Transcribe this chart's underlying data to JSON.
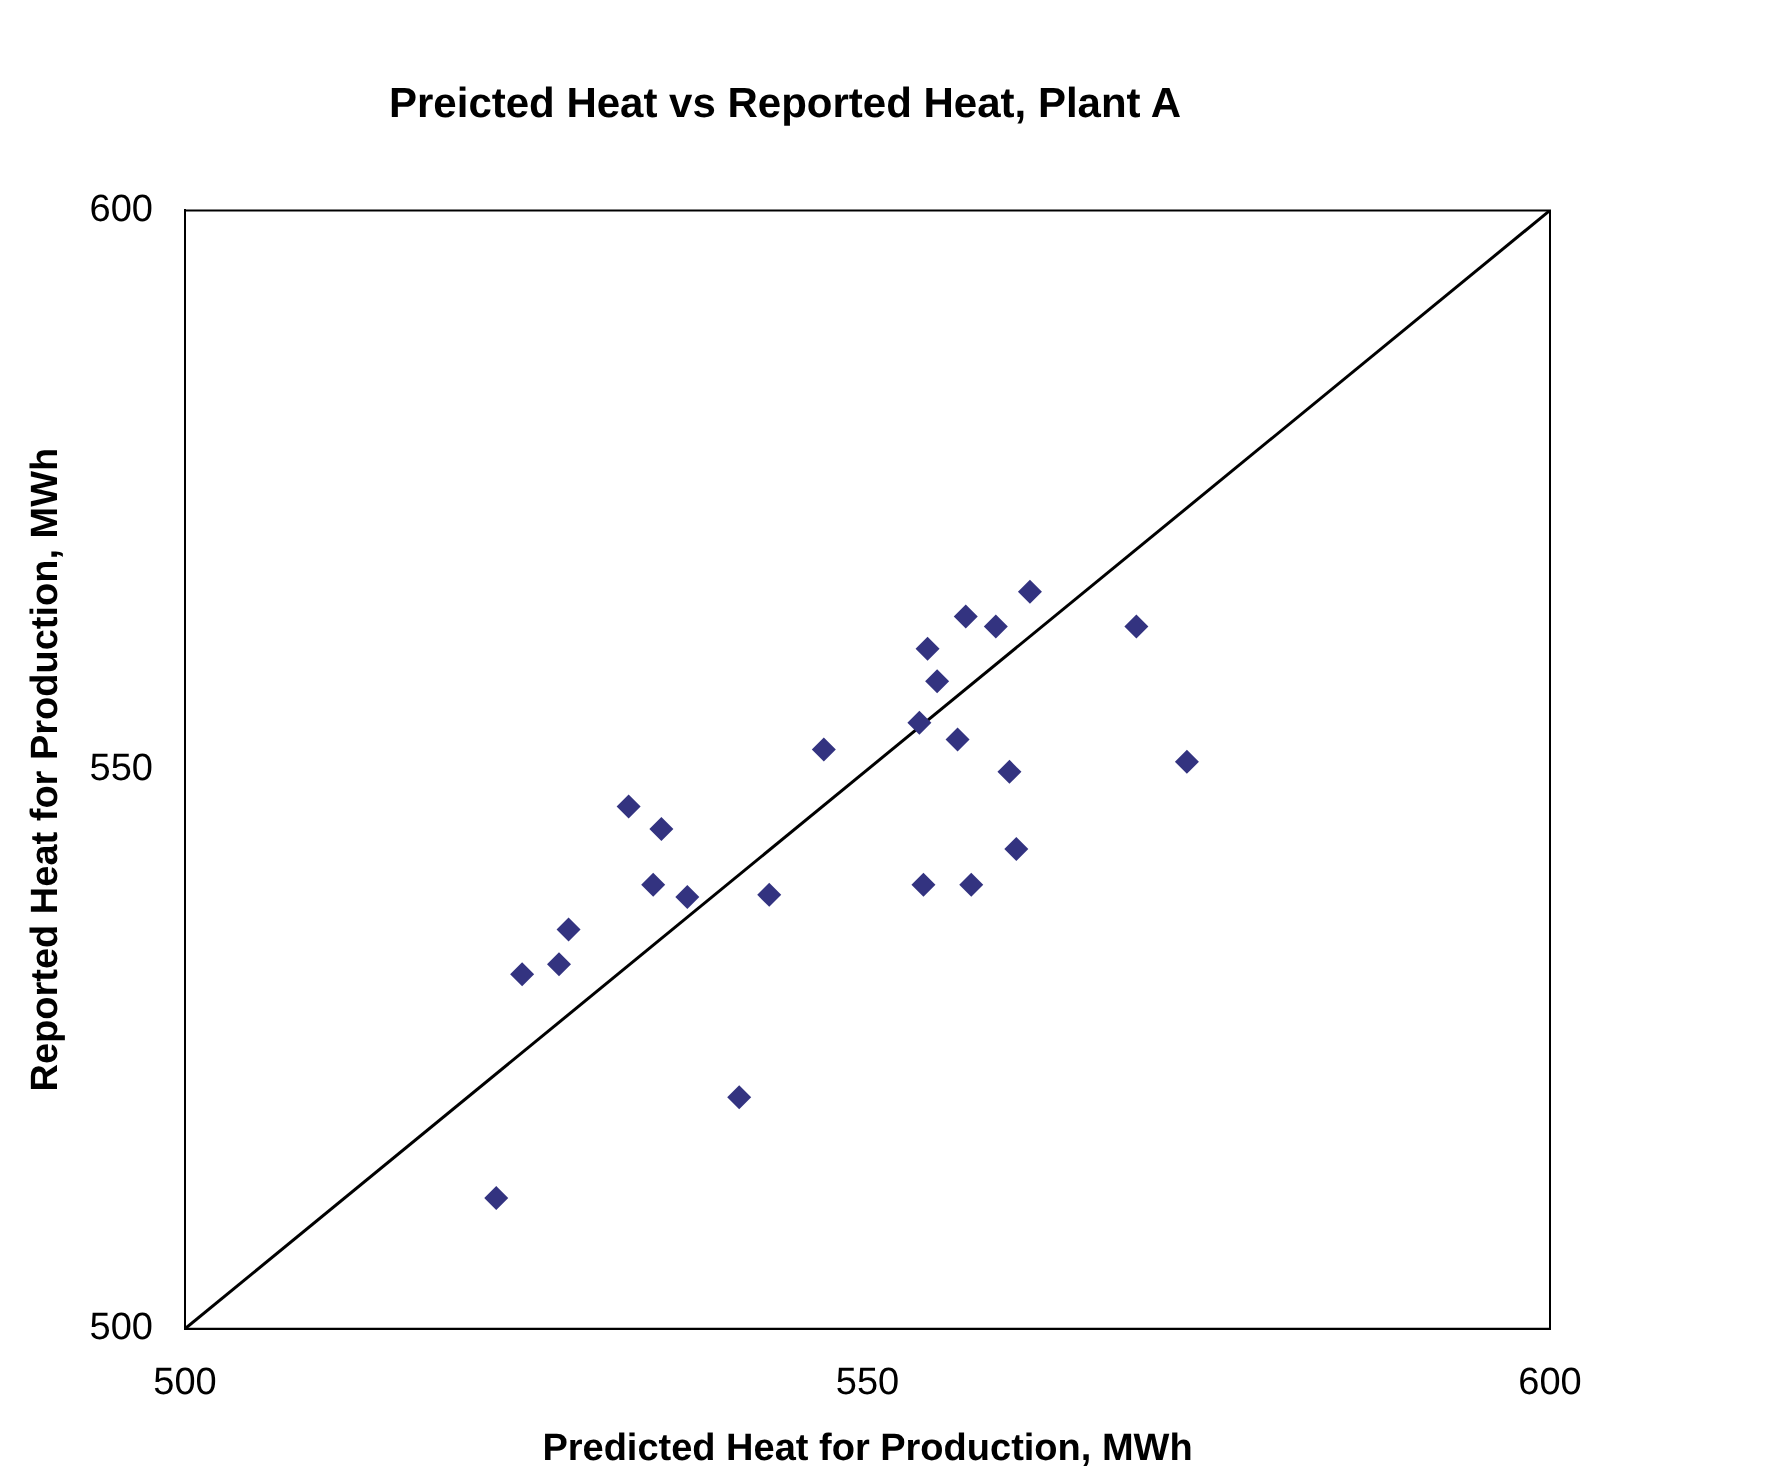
{
  "chart_data": {
    "type": "scatter",
    "title": "Preicted Heat vs Reported Heat, Plant A",
    "xlabel": "Predicted Heat for Production, MWh",
    "ylabel": "Reported Heat for Production, MWh",
    "xlim": [
      500,
      600
    ],
    "ylim": [
      500,
      600
    ],
    "xticks": [
      500,
      550,
      600
    ],
    "yticks": [
      500,
      550,
      600
    ],
    "grid": false,
    "legend": false,
    "marker": "diamond",
    "series": [
      {
        "color": "#333380",
        "x": [
          522.8,
          524.7,
          527.4,
          528.1,
          532.5,
          534.9,
          534.3,
          536.8,
          540.6,
          542.8,
          546.8,
          553.8,
          554.4,
          555.1,
          556.6,
          557.2,
          559.4,
          560.4,
          561.9,
          554.1,
          557.6,
          560.9,
          569.7,
          573.4
        ],
        "values": [
          511.7,
          531.7,
          532.6,
          535.7,
          546.7,
          544.7,
          539.7,
          538.6,
          520.7,
          538.8,
          551.8,
          554.2,
          560.8,
          557.9,
          552.7,
          563.7,
          562.8,
          549.8,
          565.9,
          539.7,
          539.7,
          542.9,
          562.8,
          550.7
        ]
      },
      {
        "type": "line",
        "color": "#000000",
        "marker": "none",
        "x": [
          500,
          600
        ],
        "values": [
          500,
          600
        ]
      }
    ]
  }
}
